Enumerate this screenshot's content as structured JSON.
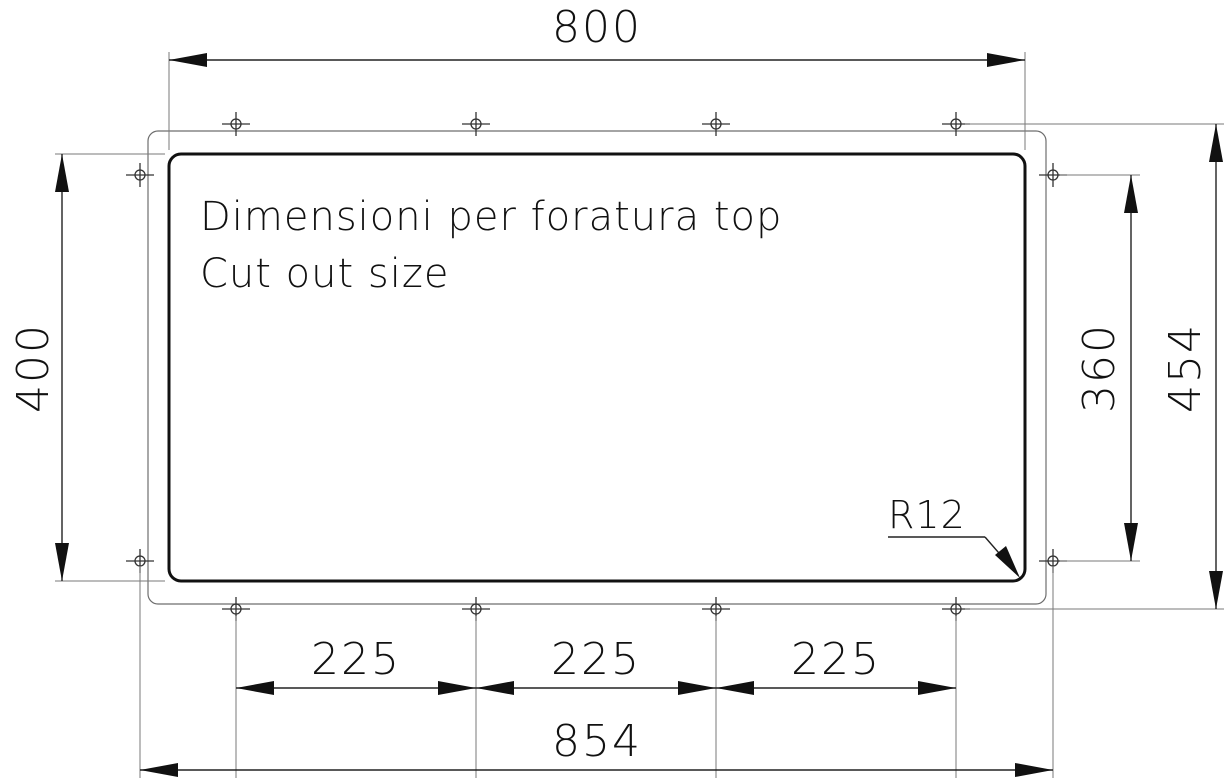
{
  "notes": {
    "line1": "Dimensioni per foratura top",
    "line2": "Cut out size"
  },
  "dimensions": {
    "top_width": "800",
    "bottom_width": "854",
    "left_height": "400",
    "right_inner_height": "360",
    "right_outer_height": "454",
    "hole_spacing_1": "225",
    "hole_spacing_2": "225",
    "hole_spacing_3": "225",
    "corner_radius": "R12"
  },
  "colors": {
    "line": "#111111",
    "background": "#ffffff"
  }
}
